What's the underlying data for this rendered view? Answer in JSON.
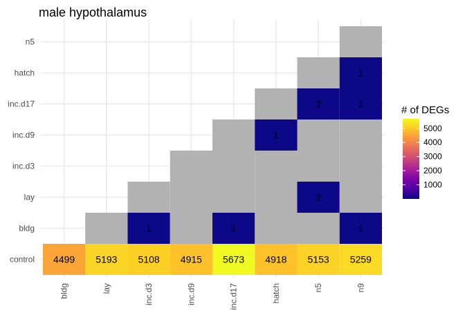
{
  "chart_data": {
    "type": "heatmap",
    "title": "male hypothalamus",
    "xlabel": "",
    "ylabel": "",
    "x_categories": [
      "bldg",
      "lay",
      "inc.d3",
      "inc.d9",
      "inc.d17",
      "hatch",
      "n5",
      "n9"
    ],
    "y_categories": [
      "control",
      "bldg",
      "lay",
      "inc.d3",
      "inc.d9",
      "inc.d17",
      "hatch",
      "n5"
    ],
    "cells": [
      {
        "x": "bldg",
        "y": "control",
        "value": 4499,
        "label": "4499"
      },
      {
        "x": "lay",
        "y": "control",
        "value": 5193,
        "label": "5193"
      },
      {
        "x": "inc.d3",
        "y": "control",
        "value": 5108,
        "label": "5108"
      },
      {
        "x": "inc.d9",
        "y": "control",
        "value": 4915,
        "label": "4915"
      },
      {
        "x": "inc.d17",
        "y": "control",
        "value": 5673,
        "label": "5673"
      },
      {
        "x": "hatch",
        "y": "control",
        "value": 4918,
        "label": "4918"
      },
      {
        "x": "n5",
        "y": "control",
        "value": 5153,
        "label": "5153"
      },
      {
        "x": "n9",
        "y": "control",
        "value": 5259,
        "label": "5259"
      },
      {
        "x": "lay",
        "y": "bldg",
        "value": null,
        "label": ""
      },
      {
        "x": "inc.d3",
        "y": "bldg",
        "value": 1,
        "label": "1"
      },
      {
        "x": "inc.d9",
        "y": "bldg",
        "value": null,
        "label": ""
      },
      {
        "x": "inc.d17",
        "y": "bldg",
        "value": 1,
        "label": "1"
      },
      {
        "x": "hatch",
        "y": "bldg",
        "value": null,
        "label": ""
      },
      {
        "x": "n5",
        "y": "bldg",
        "value": null,
        "label": ""
      },
      {
        "x": "n9",
        "y": "bldg",
        "value": 1,
        "label": "1"
      },
      {
        "x": "inc.d3",
        "y": "lay",
        "value": null,
        "label": ""
      },
      {
        "x": "inc.d9",
        "y": "lay",
        "value": null,
        "label": ""
      },
      {
        "x": "inc.d17",
        "y": "lay",
        "value": null,
        "label": ""
      },
      {
        "x": "hatch",
        "y": "lay",
        "value": null,
        "label": ""
      },
      {
        "x": "n5",
        "y": "lay",
        "value": 2,
        "label": "2"
      },
      {
        "x": "n9",
        "y": "lay",
        "value": null,
        "label": ""
      },
      {
        "x": "inc.d9",
        "y": "inc.d3",
        "value": null,
        "label": ""
      },
      {
        "x": "inc.d17",
        "y": "inc.d3",
        "value": null,
        "label": ""
      },
      {
        "x": "hatch",
        "y": "inc.d3",
        "value": null,
        "label": ""
      },
      {
        "x": "n5",
        "y": "inc.d3",
        "value": null,
        "label": ""
      },
      {
        "x": "n9",
        "y": "inc.d3",
        "value": null,
        "label": ""
      },
      {
        "x": "inc.d17",
        "y": "inc.d9",
        "value": null,
        "label": ""
      },
      {
        "x": "hatch",
        "y": "inc.d9",
        "value": 1,
        "label": "1"
      },
      {
        "x": "n5",
        "y": "inc.d9",
        "value": null,
        "label": ""
      },
      {
        "x": "n9",
        "y": "inc.d9",
        "value": null,
        "label": ""
      },
      {
        "x": "hatch",
        "y": "inc.d17",
        "value": null,
        "label": ""
      },
      {
        "x": "n5",
        "y": "inc.d17",
        "value": 2,
        "label": "2"
      },
      {
        "x": "n9",
        "y": "inc.d17",
        "value": 1,
        "label": "1"
      },
      {
        "x": "n5",
        "y": "hatch",
        "value": null,
        "label": ""
      },
      {
        "x": "n9",
        "y": "hatch",
        "value": 1,
        "label": "1"
      },
      {
        "x": "n9",
        "y": "n5",
        "value": null,
        "label": ""
      }
    ],
    "na_color": "#b2b2b2",
    "color_scale": {
      "name": "plasma",
      "domain": [
        1,
        5673
      ],
      "stops": [
        "#0d0887",
        "#46039f",
        "#7201a8",
        "#9c179e",
        "#bd3786",
        "#d8576b",
        "#ed7953",
        "#fb9f3a",
        "#fdca26",
        "#f0f921"
      ]
    },
    "legend": {
      "title": "# of DEGs",
      "ticks": [
        1000,
        2000,
        3000,
        4000,
        5000
      ],
      "tick_labels": [
        "1000",
        "2000",
        "3000",
        "4000",
        "5000"
      ],
      "position": "right"
    },
    "grid": true
  }
}
